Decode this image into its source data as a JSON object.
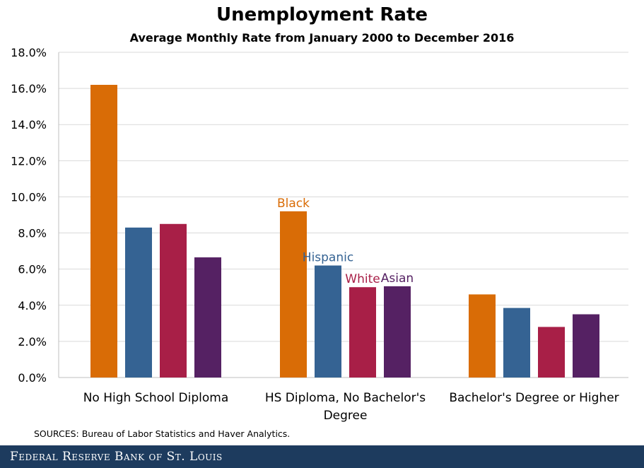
{
  "page": {
    "source": "SOURCES: Bureau of Labor Statistics and Haver Analytics.",
    "footer": "Federal Reserve Bank of St. Louis"
  },
  "chart_data": {
    "type": "bar",
    "title": "Unemployment Rate",
    "subtitle": "Average Monthly  Rate from January  2000 to December 2016",
    "xlabel": "",
    "ylabel": "",
    "ylim": [
      0,
      18
    ],
    "yticks": [
      "0.0%",
      "2.0%",
      "4.0%",
      "6.0%",
      "8.0%",
      "10.0%",
      "12.0%",
      "14.0%",
      "16.0%",
      "18.0%"
    ],
    "categories": [
      [
        "No High School Diploma"
      ],
      [
        "HS Diploma, No Bachelor's",
        "Degree"
      ],
      [
        "Bachelor's Degree or Higher"
      ]
    ],
    "series": [
      {
        "name": "Black",
        "color": "#d96c06",
        "values": [
          16.2,
          9.2,
          4.6
        ]
      },
      {
        "name": "Hispanic",
        "color": "#356393",
        "values": [
          8.3,
          6.2,
          3.85
        ]
      },
      {
        "name": "White",
        "color": "#a81f47",
        "values": [
          8.5,
          5.0,
          2.8
        ]
      },
      {
        "name": "Asian",
        "color": "#552163",
        "values": [
          6.65,
          5.05,
          3.5
        ]
      }
    ],
    "series_labels_on_category": 1,
    "grid": true
  }
}
